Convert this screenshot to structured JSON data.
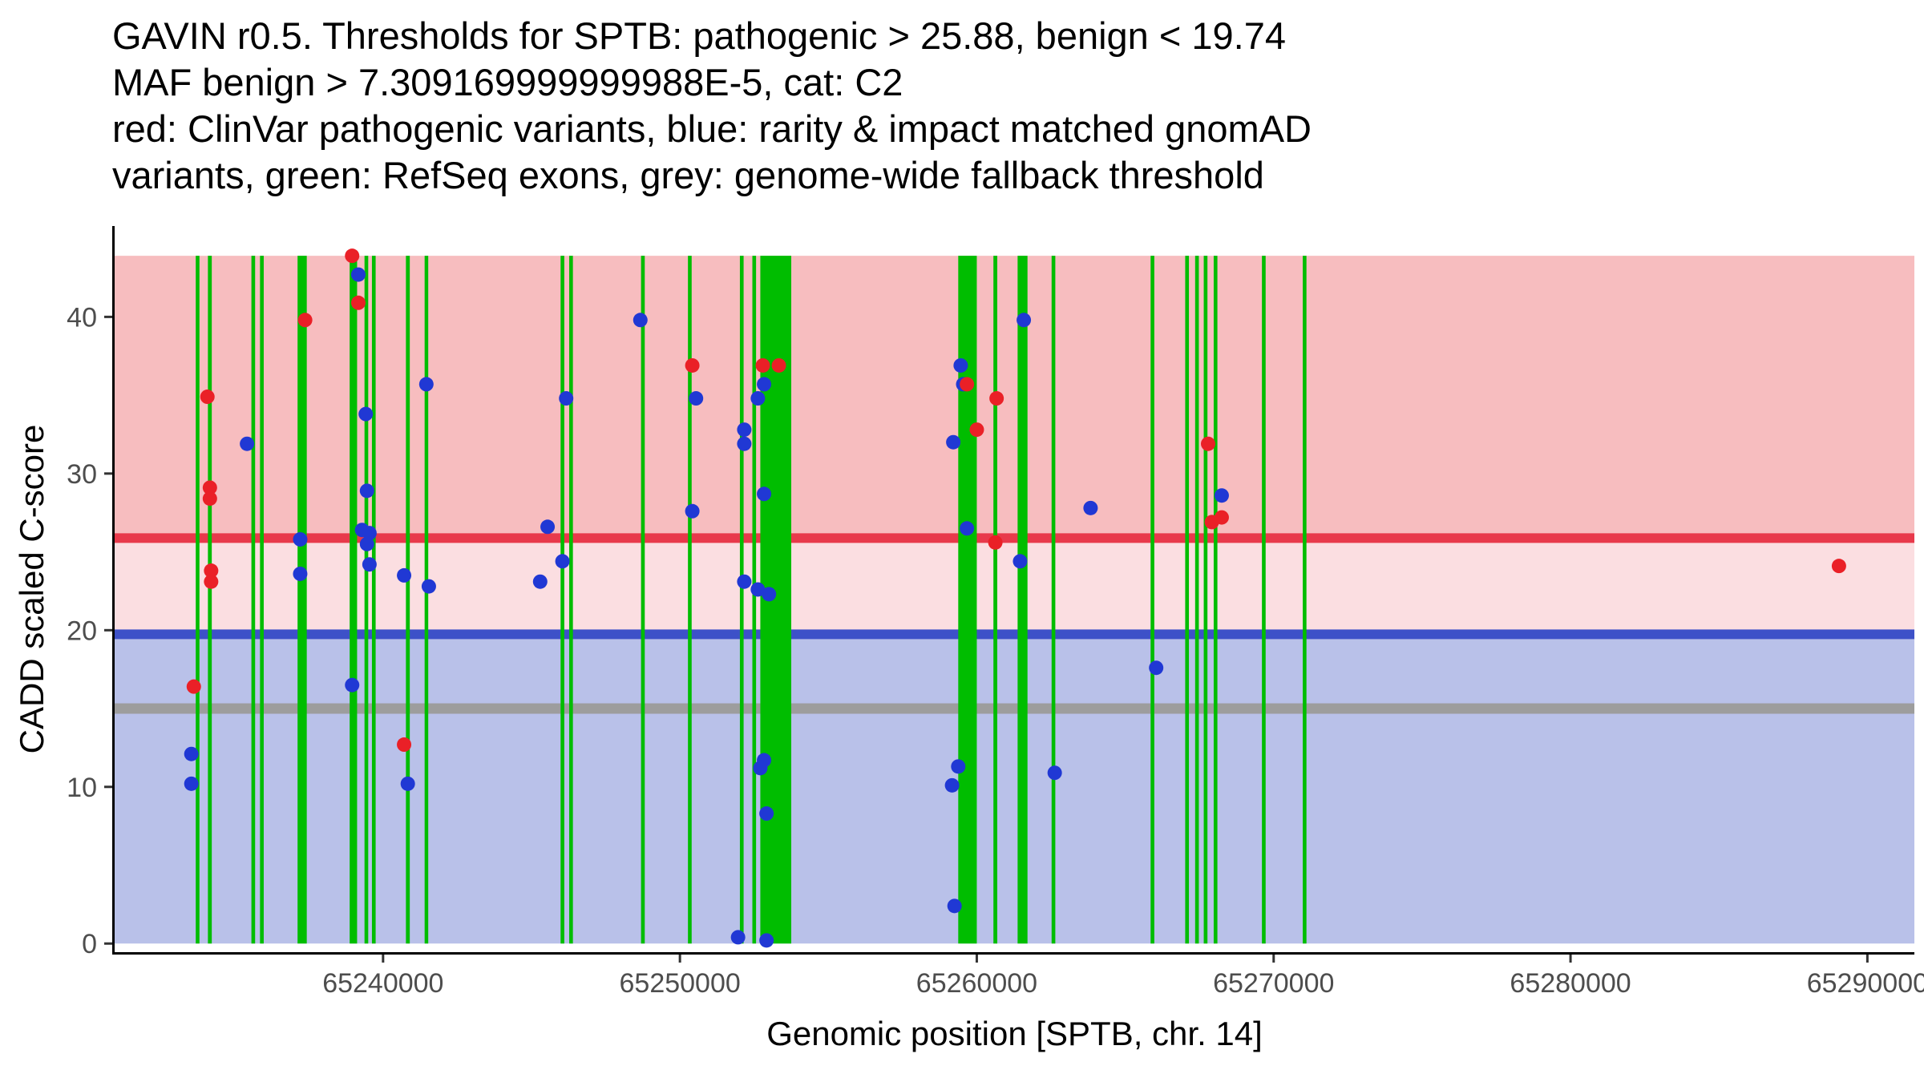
{
  "title": {
    "lines": [
      "GAVIN r0.5. Thresholds for SPTB: pathogenic > 25.88, benign < 19.74",
      "MAF benign > 7.309169999999988E-5, cat: C2",
      "red: ClinVar pathogenic variants, blue: rarity & impact matched gnomAD",
      "variants, green: RefSeq exons, grey: genome-wide fallback threshold"
    ]
  },
  "axes": {
    "x_label": "Genomic position [SPTB, chr. 14]",
    "y_label": "CADD scaled C-score"
  },
  "colors": {
    "band_pathogenic": "#f7bdbf",
    "band_intermediate": "#fbdee1",
    "band_benign": "#b9c1e9",
    "pathogenic_line": "#e8394b",
    "benign_line": "#3d51c8",
    "fallback_line": "#9d9d9d",
    "exon_green": "#00bd00",
    "clinvar_red": "#ea2027",
    "gnomad_blue": "#2038d4",
    "axis_line": "#000000",
    "tick_mark": "#333333",
    "tick_label": "#4d4d4d"
  },
  "chart_data": {
    "type": "scatter",
    "title": "GAVIN r0.5. Thresholds for SPTB: pathogenic > 25.88, benign < 19.74",
    "xlabel": "Genomic position [SPTB, chr. 14]",
    "ylabel": "CADD scaled C-score",
    "gene": "SPTB",
    "chromosome": "chr. 14",
    "category": "C2",
    "maf_benign": "7.309169999999988E-5",
    "xlim": [
      65230958,
      65291583
    ],
    "ylim": [
      -0.55,
      45.8
    ],
    "band_top": 43.9,
    "x_ticks": [
      65240000,
      65250000,
      65260000,
      65270000,
      65280000,
      65290000
    ],
    "y_ticks": [
      0,
      10,
      20,
      30,
      40
    ],
    "thresholds": {
      "pathogenic": 25.88,
      "benign": 19.74,
      "genome_wide_fallback": 15
    },
    "exons": [
      [
        65233690,
        65233815
      ],
      [
        65234100,
        65234230
      ],
      [
        65235565,
        65235690
      ],
      [
        65235855,
        65235980
      ],
      [
        65237120,
        65237430
      ],
      [
        65238875,
        65239125
      ],
      [
        65239375,
        65239500
      ],
      [
        65239625,
        65239750
      ],
      [
        65240770,
        65240900
      ],
      [
        65241400,
        65241520
      ],
      [
        65245980,
        65246105
      ],
      [
        65246270,
        65246395
      ],
      [
        65248690,
        65248815
      ],
      [
        65250270,
        65250395
      ],
      [
        65252020,
        65252145
      ],
      [
        65252440,
        65252565
      ],
      [
        65252708,
        65253750
      ],
      [
        65259375,
        65260000
      ],
      [
        65260560,
        65260690
      ],
      [
        65261375,
        65261708
      ],
      [
        65262520,
        65262645
      ],
      [
        65265855,
        65265980
      ],
      [
        65267020,
        65267145
      ],
      [
        65267355,
        65267480
      ],
      [
        65267645,
        65267770
      ],
      [
        65267980,
        65268105
      ],
      [
        65269605,
        65269730
      ],
      [
        65270980,
        65271105
      ]
    ],
    "series": [
      {
        "id": "clinvar",
        "name": "ClinVar pathogenic variants",
        "color_key": "clinvar_red",
        "points": [
          [
            65234083,
            34.9
          ],
          [
            65234167,
            29.1
          ],
          [
            65234167,
            28.4
          ],
          [
            65234208,
            23.8
          ],
          [
            65234208,
            23.1
          ],
          [
            65233625,
            16.4
          ],
          [
            65237375,
            39.8
          ],
          [
            65238958,
            43.9
          ],
          [
            65239167,
            40.9
          ],
          [
            65240708,
            12.7
          ],
          [
            65250417,
            36.9
          ],
          [
            65252792,
            36.9
          ],
          [
            65253333,
            36.9
          ],
          [
            65259667,
            35.7
          ],
          [
            65260000,
            32.8
          ],
          [
            65260667,
            34.8
          ],
          [
            65260625,
            25.6
          ],
          [
            65267792,
            31.9
          ],
          [
            65267917,
            26.9
          ],
          [
            65268250,
            27.2
          ],
          [
            65289042,
            24.1
          ]
        ]
      },
      {
        "id": "gnomad",
        "name": "rarity & impact matched gnomAD variants",
        "color_key": "gnomad_blue",
        "points": [
          [
            65233542,
            12.1
          ],
          [
            65233542,
            10.2
          ],
          [
            65235417,
            31.9
          ],
          [
            65237208,
            25.8
          ],
          [
            65237208,
            23.6
          ],
          [
            65238958,
            16.5
          ],
          [
            65239167,
            42.7
          ],
          [
            65239417,
            33.8
          ],
          [
            65239458,
            28.9
          ],
          [
            65239292,
            26.4
          ],
          [
            65239542,
            26.2
          ],
          [
            65239458,
            25.5
          ],
          [
            65239542,
            24.2
          ],
          [
            65240833,
            10.2
          ],
          [
            65240708,
            23.5
          ],
          [
            65241458,
            35.7
          ],
          [
            65241542,
            22.8
          ],
          [
            65245542,
            26.6
          ],
          [
            65245292,
            23.1
          ],
          [
            65246167,
            34.8
          ],
          [
            65246042,
            24.4
          ],
          [
            65248667,
            39.8
          ],
          [
            65250542,
            34.8
          ],
          [
            65250417,
            27.6
          ],
          [
            65252167,
            32.8
          ],
          [
            65252167,
            31.9
          ],
          [
            65252625,
            34.8
          ],
          [
            65252833,
            35.7
          ],
          [
            65252833,
            28.7
          ],
          [
            65252167,
            23.1
          ],
          [
            65252625,
            22.6
          ],
          [
            65253000,
            22.3
          ],
          [
            65252833,
            11.7
          ],
          [
            65252708,
            11.2
          ],
          [
            65252917,
            8.3
          ],
          [
            65251958,
            0.4
          ],
          [
            65252917,
            0.2
          ],
          [
            65259458,
            36.9
          ],
          [
            65259542,
            35.7
          ],
          [
            65259208,
            32.0
          ],
          [
            65259667,
            26.5
          ],
          [
            65259375,
            11.3
          ],
          [
            65259167,
            10.1
          ],
          [
            65259250,
            2.4
          ],
          [
            65261583,
            39.8
          ],
          [
            65261458,
            24.4
          ],
          [
            65262625,
            10.9
          ],
          [
            65263833,
            27.8
          ],
          [
            65266042,
            17.6
          ],
          [
            65268250,
            28.6
          ]
        ]
      }
    ]
  }
}
